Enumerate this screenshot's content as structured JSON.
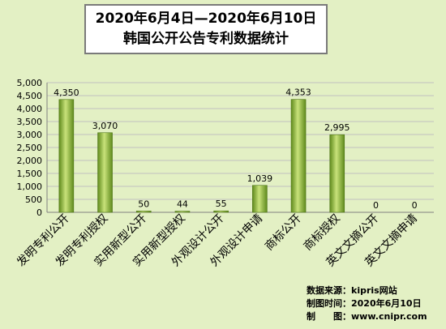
{
  "title_line1": "2020年6月4日—2020年6月10日",
  "title_line2": "韩国公开公告专利数据统计",
  "credits": {
    "source": "数据来源：kipris网站",
    "date": "制图时间：2020年6月10日",
    "maker": "制　　图：www.cnipr.com"
  },
  "colors": {
    "background": "#e3f0c4",
    "bar_light": "#c8e27a",
    "bar_dark": "#5f8a1c",
    "gridline": "#c0c0c0"
  },
  "chart_data": {
    "type": "bar",
    "title": "2020年6月4日—2020年6月10日 韩国公开公告专利数据统计",
    "categories": [
      "发明专利公开",
      "发明专利授权",
      "实用新型公开",
      "实用新型授权",
      "外观设计公开",
      "外观设计申请",
      "商标公开",
      "商标授权",
      "英文文摘公开",
      "英文文摘申请"
    ],
    "values": [
      4350,
      3070,
      50,
      44,
      55,
      1039,
      4353,
      2995,
      0,
      0
    ],
    "data_labels": [
      "4,350",
      "3,070",
      "50",
      "44",
      "55",
      "1,039",
      "4,353",
      "2,995",
      "0",
      "0"
    ],
    "ylim": [
      0,
      5000
    ],
    "yticks": [
      0,
      500,
      1000,
      1500,
      2000,
      2500,
      3000,
      3500,
      4000,
      4500,
      5000
    ],
    "ytick_labels": [
      "0",
      "500",
      "1,000",
      "1,500",
      "2,000",
      "2,500",
      "3,000",
      "3,500",
      "4,000",
      "4,500",
      "5,000"
    ],
    "grid": true,
    "legend": "none"
  }
}
